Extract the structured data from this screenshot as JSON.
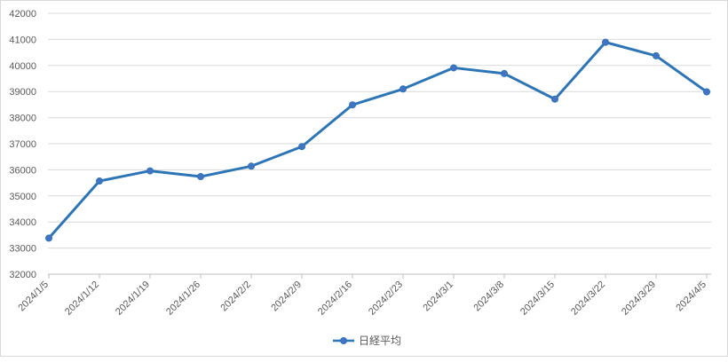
{
  "chart_data": {
    "type": "line",
    "categories": [
      "2024/1/5",
      "2024/1/12",
      "2024/1/19",
      "2024/1/26",
      "2024/2/2",
      "2024/2/9",
      "2024/2/16",
      "2024/2/23",
      "2024/3/1",
      "2024/3/8",
      "2024/3/15",
      "2024/3/22",
      "2024/3/29",
      "2024/4/5"
    ],
    "series": [
      {
        "name": "日経平均",
        "values": [
          33380,
          35570,
          35960,
          35740,
          36140,
          36890,
          38490,
          39100,
          39910,
          39690,
          38710,
          40890,
          40370,
          38990
        ],
        "color": "#2e75b6"
      }
    ],
    "ylim": [
      32000,
      42000
    ],
    "yticks": [
      32000,
      33000,
      34000,
      35000,
      36000,
      37000,
      38000,
      39000,
      40000,
      41000,
      42000
    ],
    "grid": true,
    "legend_position": "bottom"
  }
}
